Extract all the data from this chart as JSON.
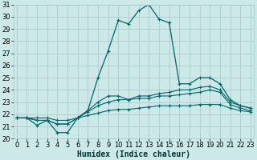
{
  "xlabel": "Humidex (Indice chaleur)",
  "background_color": "#cce8e8",
  "grid_color": "#aacccc",
  "line_color": "#006666",
  "x": [
    0,
    1,
    2,
    3,
    4,
    5,
    6,
    7,
    8,
    9,
    10,
    11,
    12,
    13,
    14,
    15,
    16,
    17,
    18,
    19,
    20,
    21,
    22,
    23
  ],
  "series1": [
    21.7,
    21.7,
    21.1,
    21.5,
    20.5,
    20.5,
    21.7,
    22.3,
    25.0,
    27.2,
    29.7,
    29.4,
    30.5,
    31.0,
    29.8,
    29.5,
    24.5,
    24.5,
    25.0,
    25.0,
    24.5,
    23.2,
    22.7,
    22.5
  ],
  "series2": [
    21.7,
    21.7,
    21.5,
    21.5,
    21.2,
    21.2,
    21.7,
    22.3,
    23.0,
    23.5,
    23.5,
    23.2,
    23.5,
    23.5,
    23.7,
    23.8,
    24.0,
    24.0,
    24.2,
    24.3,
    24.0,
    23.0,
    22.7,
    22.5
  ],
  "series3": [
    21.7,
    21.7,
    21.5,
    21.5,
    21.2,
    21.2,
    21.7,
    22.2,
    22.7,
    23.0,
    23.2,
    23.2,
    23.3,
    23.3,
    23.5,
    23.5,
    23.6,
    23.7,
    23.8,
    24.0,
    23.8,
    22.8,
    22.5,
    22.3
  ],
  "series4": [
    21.7,
    21.7,
    21.7,
    21.7,
    21.5,
    21.5,
    21.7,
    21.9,
    22.1,
    22.3,
    22.4,
    22.4,
    22.5,
    22.6,
    22.7,
    22.7,
    22.7,
    22.7,
    22.8,
    22.8,
    22.8,
    22.5,
    22.3,
    22.2
  ],
  "ylim": [
    20,
    31
  ],
  "yticks": [
    20,
    21,
    22,
    23,
    24,
    25,
    26,
    27,
    28,
    29,
    30,
    31
  ],
  "xticks": [
    0,
    1,
    2,
    3,
    4,
    5,
    6,
    7,
    8,
    9,
    10,
    11,
    12,
    13,
    14,
    15,
    16,
    17,
    18,
    19,
    20,
    21,
    22,
    23
  ],
  "label_fontsize": 7,
  "tick_fontsize": 6
}
